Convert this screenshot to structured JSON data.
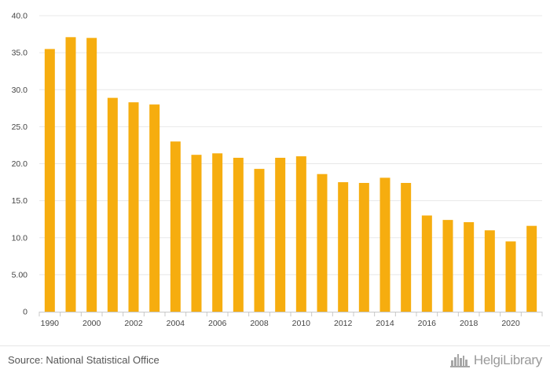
{
  "chart_data": {
    "type": "bar",
    "x": [
      1990,
      1999,
      2000,
      2001,
      2002,
      2003,
      2004,
      2005,
      2006,
      2007,
      2008,
      2009,
      2010,
      2011,
      2012,
      2013,
      2014,
      2015,
      2016,
      2017,
      2018,
      2019,
      2020,
      2021
    ],
    "values": [
      35.5,
      37.1,
      37.0,
      28.9,
      28.3,
      28.0,
      23.0,
      21.2,
      21.4,
      20.8,
      19.3,
      20.8,
      21.0,
      18.6,
      17.5,
      17.4,
      18.1,
      17.4,
      13.0,
      12.4,
      12.1,
      11.0,
      9.5,
      11.6
    ],
    "categories": [
      "1990",
      "",
      "2000",
      "",
      "2002",
      "",
      "2004",
      "",
      "2006",
      "",
      "2008",
      "",
      "2010",
      "",
      "2012",
      "",
      "2014",
      "",
      "2016",
      "",
      "2018",
      "",
      "2020",
      ""
    ],
    "ylim": [
      0,
      40
    ],
    "yticks": [
      "0",
      "5.00",
      "10.0",
      "15.0",
      "20.0",
      "25.0",
      "30.0",
      "35.0",
      "40.0"
    ],
    "grid": true,
    "bar_color": "#f6ad0f",
    "grid_color": "#e8e8e8",
    "title": "",
    "xlabel": "",
    "ylabel": ""
  },
  "footer": {
    "source": "Source: National Statistical Office",
    "brand": "HelgiLibrary"
  },
  "icons": {
    "brand_logo": "city-skyline-icon"
  }
}
